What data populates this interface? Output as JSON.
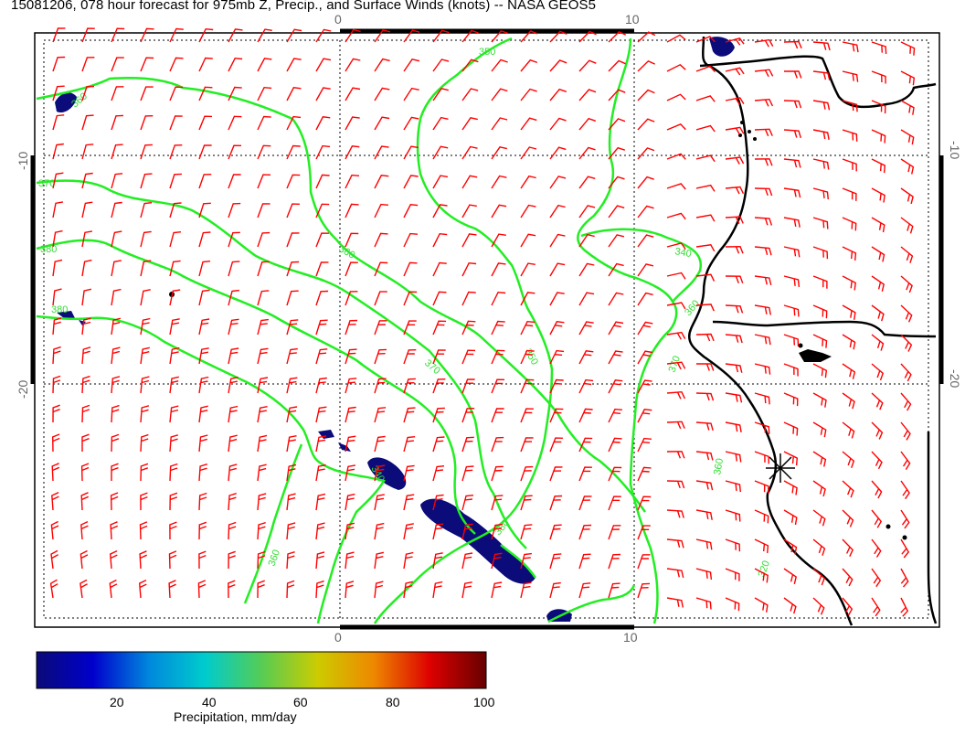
{
  "title": "15081206, 078 hour forecast for 975mb Z, Precip., and Surface Winds (knots) -- NASA GEOS5",
  "colors": {
    "wind_barbs": "#ff0000",
    "contours": "#22ee22",
    "coastline": "#000000",
    "precip": "#0b0b7a",
    "grid": "#000000"
  },
  "map": {
    "lon_ticks_top": [
      "0",
      "10"
    ],
    "lon_ticks_bottom": [
      "0",
      "10"
    ],
    "lat_ticks_left": [
      "-10",
      "-20"
    ],
    "lat_ticks_right": [
      "-10",
      "-20"
    ],
    "contour_labels": [
      "350",
      "360",
      "370",
      "380",
      "360",
      "340",
      "380",
      "360",
      "350",
      "370",
      "370",
      "340",
      "360",
      "380",
      "360",
      "310",
      "330",
      "320"
    ],
    "marker": "station-asterisk"
  },
  "colorbar": {
    "label": "Precipitation, mm/day",
    "ticks": [
      "20",
      "40",
      "60",
      "80",
      "100"
    ],
    "stops": [
      "#0a0a78",
      "#0000cc",
      "#0088dd",
      "#00cccc",
      "#55cc55",
      "#cccc00",
      "#ee8800",
      "#dd0000",
      "#660000"
    ]
  }
}
